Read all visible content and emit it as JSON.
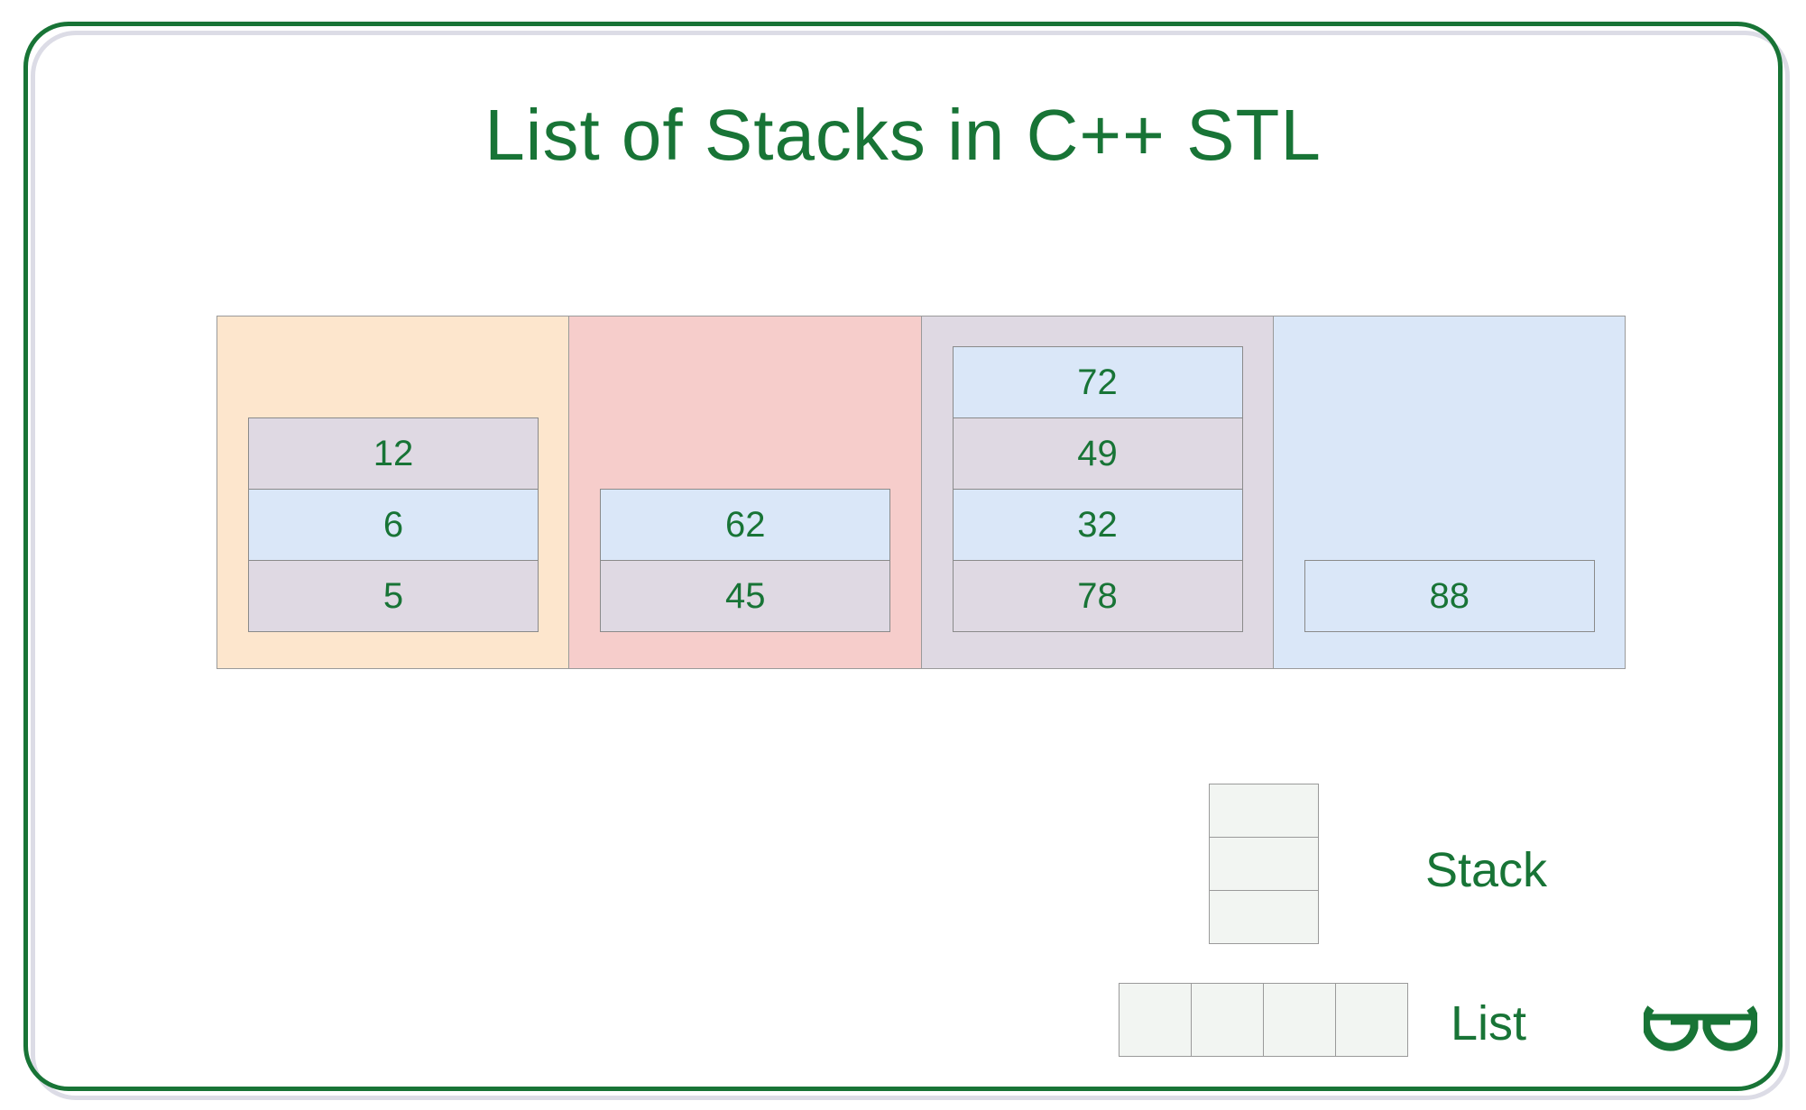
{
  "title": "List of Stacks in C++ STL",
  "colors": {
    "accent": "#187436",
    "peach": "#fde6cd",
    "pink": "#f6cdcb",
    "lavender": "#dfd9e3",
    "lightblue": "#dae7f8",
    "legend_fill": "#f2f5f2"
  },
  "list": [
    {
      "color": "#fde6cd",
      "stack": [
        {
          "value": "12",
          "color": "#dfd9e3"
        },
        {
          "value": "6",
          "color": "#dae7f8"
        },
        {
          "value": "5",
          "color": "#dfd9e3"
        }
      ]
    },
    {
      "color": "#f6cdcb",
      "stack": [
        {
          "value": "62",
          "color": "#dae7f8"
        },
        {
          "value": "45",
          "color": "#dfd9e3"
        }
      ]
    },
    {
      "color": "#dfd9e3",
      "stack": [
        {
          "value": "72",
          "color": "#dae7f8"
        },
        {
          "value": "49",
          "color": "#dfd9e3"
        },
        {
          "value": "32",
          "color": "#dae7f8"
        },
        {
          "value": "78",
          "color": "#dfd9e3"
        }
      ]
    },
    {
      "color": "#dae7f8",
      "stack": [
        {
          "value": "88",
          "color": "#dae7f8"
        }
      ]
    }
  ],
  "legend": {
    "stack_label": "Stack",
    "list_label": "List"
  },
  "logo": {
    "icon": "gfg-logo-icon"
  }
}
